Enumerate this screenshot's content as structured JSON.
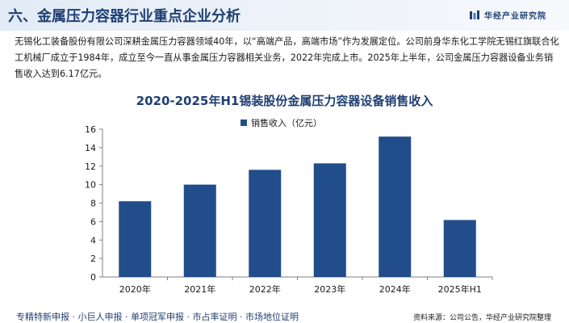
{
  "header": {
    "title": "六、金属压力容器行业重点企业分析",
    "brand": "华经产业研究院",
    "brand_color": "#1f3f73"
  },
  "intro_text": "无锡化工装备股份有限公司深耕金属压力容器领域40年，以“高端产品，高端市场”作为发展定位。公司前身华东化工学院无锡红旗联合化工机械厂成立于1984年，成立至今一直从事金属压力容器相关业务，2022年完成上市。2025年上半年，公司金属压力容器设备业务销售收入达到6.17亿元。",
  "chart_data": {
    "type": "bar",
    "title": "2020-2025年H1锡装股份金属压力容器设备销售收入",
    "categories": [
      "2020年",
      "2021年",
      "2022年",
      "2023年",
      "2024年",
      "2025年H1"
    ],
    "series": [
      {
        "name": "销售收入（亿元）",
        "values": [
          8.2,
          10.0,
          11.6,
          12.3,
          15.2,
          6.17
        ],
        "color": "#214d8b"
      }
    ],
    "y_ticks": [
      "0",
      "2",
      "4",
      "6",
      "8",
      "10",
      "12",
      "14",
      "16"
    ],
    "ylim": [
      0,
      16
    ],
    "grid": false,
    "legend_position": "top-center"
  },
  "footer": {
    "left": "专精特新申报 · 小巨人申报 · 单项冠军申报 · 市占率证明 · 市场地位证明",
    "right": "资料来源：公司公告，华经产业研究院整理"
  }
}
